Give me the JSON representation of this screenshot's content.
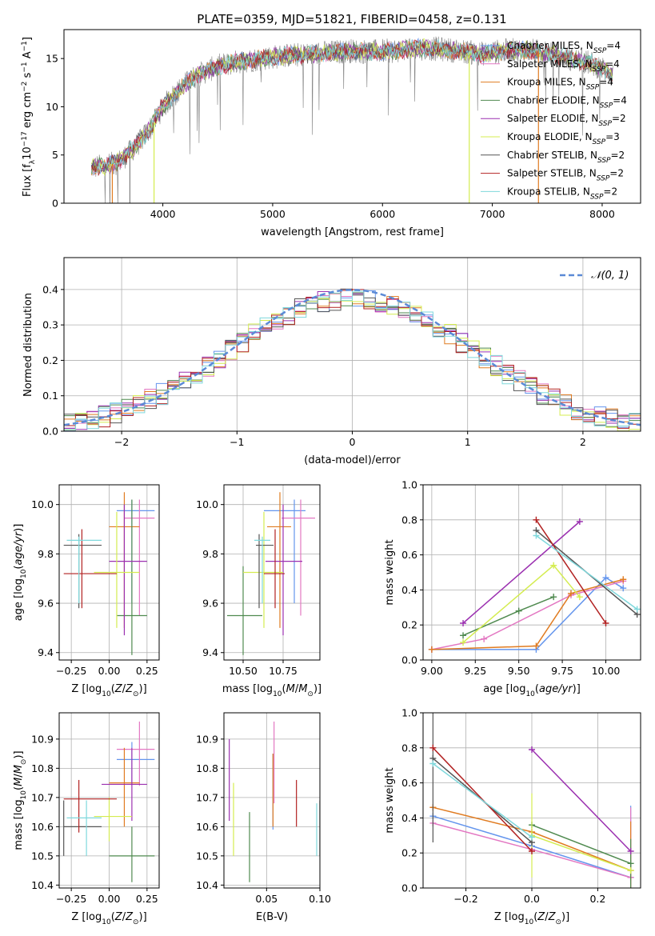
{
  "title": "PLATE=0359, MJD=51821, FIBERID=0458, z=0.131",
  "legend_colors": {
    "Chabrier MILES": "#6495ed",
    "Salpeter MILES": "#e377c2",
    "Kroupa MILES": "#e07b20",
    "Chabrier ELODIE": "#4f8a4f",
    "Salpeter ELODIE": "#9b30b0",
    "Kroupa ELODIE": "#d4ec50",
    "Chabrier STELIB": "#555555",
    "Salpeter STELIB": "#b22222",
    "Kroupa STELIB": "#7fd8dc"
  },
  "chart_data": [
    {
      "id": "spectrum",
      "type": "line",
      "xlabel": "wavelength [Angstrom, rest frame]",
      "ylabel": "Flux [f_λ10^-17 erg cm^-2 s^-1 A^-1]",
      "xlim": [
        3100,
        8350
      ],
      "ylim": [
        0,
        18
      ],
      "xticks": [
        4000,
        5000,
        6000,
        7000,
        8000
      ],
      "yticks": [
        0,
        5,
        10,
        15
      ],
      "grid": false,
      "legend_position": "top-right",
      "series": [
        {
          "name": "Chabrier MILES, N_SSP=4"
        },
        {
          "name": "Salpeter MILES, N_SSP=4"
        },
        {
          "name": "Kroupa MILES, N_SSP=4"
        },
        {
          "name": "Chabrier ELODIE, N_SSP=4"
        },
        {
          "name": "Salpeter ELODIE, N_SSP=2"
        },
        {
          "name": "Kroupa ELODIE, N_SSP=3"
        },
        {
          "name": "Chabrier STELIB, N_SSP=2"
        },
        {
          "name": "Salpeter STELIB, N_SSP=2"
        },
        {
          "name": "Kroupa STELIB, N_SSP=2"
        }
      ],
      "continuum": {
        "x": [
          3350,
          3500,
          3600,
          3700,
          3800,
          3900,
          4000,
          4100,
          4200,
          4300,
          4500,
          4700,
          4900,
          5100,
          5300,
          5500,
          5700,
          5900,
          6100,
          6300,
          6500,
          6700,
          6900,
          7100,
          7300,
          7500,
          7700,
          7900,
          8100
        ],
        "y": [
          3.7,
          3.9,
          4.3,
          5.3,
          6.5,
          8.0,
          10.0,
          11.2,
          12.3,
          13.2,
          14.2,
          14.7,
          15.0,
          15.3,
          15.4,
          15.6,
          15.8,
          15.7,
          15.8,
          16.1,
          16.0,
          15.8,
          15.5,
          15.8,
          15.9,
          15.6,
          15.0,
          14.5,
          13.4
        ]
      }
    },
    {
      "id": "residuals",
      "type": "histogram",
      "xlabel": "(data-model)/error",
      "ylabel": "Normed distribution",
      "xlim": [
        -2.5,
        2.5
      ],
      "ylim": [
        0,
        0.49
      ],
      "xticks": [
        -2,
        -1,
        0,
        1,
        2
      ],
      "yticks": [
        0.0,
        0.1,
        0.2,
        0.3,
        0.4
      ],
      "grid": true,
      "legend_position": "top-right",
      "reference": {
        "name": "N(0,1)",
        "mean": 0,
        "sigma": 1,
        "color": "#5b8ad6"
      },
      "bin_width": 0.1,
      "reference_value_sample": [
        0.0175,
        0.054,
        0.13,
        0.242,
        0.352,
        0.399,
        0.352,
        0.242,
        0.13,
        0.054,
        0.0175
      ]
    },
    {
      "id": "age-vs-Z",
      "type": "errorbar",
      "xlabel": "Z [log10(Z/Z⊙)]",
      "ylabel": "age [log10(age/yr)]",
      "xlim": [
        -0.33,
        0.33
      ],
      "ylim": [
        9.37,
        10.08
      ],
      "xticks": [
        -0.25,
        0,
        0.25
      ],
      "yticks": [
        9.4,
        9.6,
        9.8,
        10.0
      ],
      "points": [
        {
          "model": "Chabrier MILES",
          "x": 0.15,
          "y": 9.975,
          "xlo": 0.05,
          "xhi": 0.3,
          "ylo": 9.6,
          "yhi": 10.02
        },
        {
          "model": "Salpeter MILES",
          "x": 0.2,
          "y": 9.945,
          "xlo": 0.1,
          "xhi": 0.3,
          "ylo": 9.55,
          "yhi": 10.02
        },
        {
          "model": "Kroupa MILES",
          "x": 0.1,
          "y": 9.91,
          "xlo": 0.0,
          "xhi": 0.2,
          "ylo": 9.5,
          "yhi": 10.05
        },
        {
          "model": "Chabrier ELODIE",
          "x": 0.15,
          "y": 9.55,
          "xlo": 0.05,
          "xhi": 0.25,
          "ylo": 9.39,
          "yhi": 10.02
        },
        {
          "model": "Salpeter ELODIE",
          "x": 0.1,
          "y": 9.77,
          "xlo": 0.0,
          "xhi": 0.25,
          "ylo": 9.47,
          "yhi": 10.0
        },
        {
          "model": "Kroupa ELODIE",
          "x": 0.05,
          "y": 9.725,
          "xlo": -0.1,
          "xhi": 0.2,
          "ylo": 9.5,
          "yhi": 9.97
        },
        {
          "model": "Chabrier STELIB",
          "x": -0.2,
          "y": 9.835,
          "xlo": -0.3,
          "xhi": -0.05,
          "ylo": 9.58,
          "yhi": 9.88
        },
        {
          "model": "Salpeter STELIB",
          "x": -0.18,
          "y": 9.72,
          "xlo": -0.3,
          "xhi": 0.05,
          "ylo": 9.58,
          "yhi": 9.9
        },
        {
          "model": "Kroupa STELIB",
          "x": -0.2,
          "y": 9.855,
          "xlo": -0.28,
          "xhi": -0.05,
          "ylo": 9.6,
          "yhi": 9.87
        }
      ]
    },
    {
      "id": "age-vs-mass",
      "type": "errorbar",
      "xlabel": "mass [log10(M/M⊙)]",
      "ylabel": "",
      "xlim": [
        10.38,
        10.98
      ],
      "ylim": [
        9.37,
        10.08
      ],
      "xticks": [
        10.5,
        10.75
      ],
      "yticks": [
        9.4,
        9.6,
        9.8,
        10.0
      ],
      "points": [
        {
          "model": "Chabrier MILES",
          "x": 10.82,
          "y": 9.975,
          "xlo": 10.63,
          "xhi": 10.89,
          "ylo": 9.6,
          "yhi": 10.02
        },
        {
          "model": "Salpeter MILES",
          "x": 10.86,
          "y": 9.945,
          "xlo": 10.74,
          "xhi": 10.95,
          "ylo": 9.55,
          "yhi": 10.02
        },
        {
          "model": "Kroupa MILES",
          "x": 10.73,
          "y": 9.91,
          "xlo": 10.65,
          "xhi": 10.8,
          "ylo": 9.5,
          "yhi": 10.05
        },
        {
          "model": "Chabrier ELODIE",
          "x": 10.5,
          "y": 9.55,
          "xlo": 10.4,
          "xhi": 10.62,
          "ylo": 9.39,
          "yhi": 9.75
        },
        {
          "model": "Salpeter ELODIE",
          "x": 10.75,
          "y": 9.77,
          "xlo": 10.64,
          "xhi": 10.87,
          "ylo": 9.47,
          "yhi": 10.0
        },
        {
          "model": "Kroupa ELODIE",
          "x": 10.63,
          "y": 9.725,
          "xlo": 10.5,
          "xhi": 10.75,
          "ylo": 9.5,
          "yhi": 9.97
        },
        {
          "model": "Chabrier STELIB",
          "x": 10.6,
          "y": 9.835,
          "xlo": 10.58,
          "xhi": 10.69,
          "ylo": 9.58,
          "yhi": 9.88
        },
        {
          "model": "Salpeter STELIB",
          "x": 10.7,
          "y": 9.72,
          "xlo": 10.63,
          "xhi": 10.76,
          "ylo": 9.58,
          "yhi": 9.9
        },
        {
          "model": "Kroupa STELIB",
          "x": 10.62,
          "y": 9.855,
          "xlo": 10.57,
          "xhi": 10.67,
          "ylo": 9.6,
          "yhi": 9.87
        }
      ]
    },
    {
      "id": "mass-weight-vs-age",
      "type": "line",
      "xlabel": "age [log10(age/yr)]",
      "ylabel": "mass weight",
      "xlim": [
        8.95,
        10.2
      ],
      "ylim": [
        0,
        1
      ],
      "xticks": [
        9.0,
        9.25,
        9.5,
        9.75,
        10.0
      ],
      "yticks": [
        0.0,
        0.2,
        0.4,
        0.6,
        0.8,
        1.0
      ],
      "grid": true,
      "series": [
        {
          "model": "Chabrier MILES",
          "x": [
            9.0,
            9.6,
            10.0,
            10.1
          ],
          "y": [
            0.06,
            0.06,
            0.47,
            0.41
          ]
        },
        {
          "model": "Salpeter MILES",
          "x": [
            9.0,
            9.3,
            9.8,
            10.1
          ],
          "y": [
            0.06,
            0.12,
            0.37,
            0.45
          ]
        },
        {
          "model": "Kroupa MILES",
          "x": [
            9.0,
            9.6,
            9.8,
            10.1
          ],
          "y": [
            0.06,
            0.08,
            0.38,
            0.46
          ]
        },
        {
          "model": "Chabrier ELODIE",
          "x": [
            9.18,
            9.5,
            9.7
          ],
          "y": [
            0.14,
            0.28,
            0.36
          ]
        },
        {
          "model": "Salpeter ELODIE",
          "x": [
            9.18,
            9.85
          ],
          "y": [
            0.21,
            0.79
          ]
        },
        {
          "model": "Kroupa ELODIE",
          "x": [
            9.18,
            9.7,
            9.85
          ],
          "y": [
            0.1,
            0.54,
            0.36
          ]
        },
        {
          "model": "Chabrier STELIB",
          "x": [
            9.6,
            10.18
          ],
          "y": [
            0.74,
            0.26
          ]
        },
        {
          "model": "Salpeter STELIB",
          "x": [
            9.6,
            10.0
          ],
          "y": [
            0.8,
            0.21
          ]
        },
        {
          "model": "Kroupa STELIB",
          "x": [
            9.6,
            10.18
          ],
          "y": [
            0.71,
            0.29
          ]
        }
      ]
    },
    {
      "id": "mass-vs-Z",
      "type": "errorbar",
      "xlabel": "Z [log10(Z/Z⊙)]",
      "ylabel": "mass [log10(M/M⊙)]",
      "xlim": [
        -0.33,
        0.33
      ],
      "ylim": [
        10.39,
        10.99
      ],
      "xticks": [
        -0.25,
        0,
        0.25
      ],
      "yticks": [
        10.4,
        10.5,
        10.6,
        10.7,
        10.8,
        10.9
      ],
      "points": [
        {
          "model": "Chabrier MILES",
          "x": 0.15,
          "y": 10.83,
          "xlo": 0.05,
          "xhi": 0.3,
          "ylo": 10.74,
          "yhi": 10.89
        },
        {
          "model": "Salpeter MILES",
          "x": 0.2,
          "y": 10.865,
          "xlo": 0.05,
          "xhi": 0.3,
          "ylo": 10.74,
          "yhi": 10.96
        },
        {
          "model": "Kroupa MILES",
          "x": 0.1,
          "y": 10.75,
          "xlo": 0.0,
          "xhi": 0.2,
          "ylo": 10.6,
          "yhi": 10.87
        },
        {
          "model": "Chabrier ELODIE",
          "x": 0.15,
          "y": 10.5,
          "xlo": 0.0,
          "xhi": 0.3,
          "ylo": 10.41,
          "yhi": 10.6
        },
        {
          "model": "Salpeter ELODIE",
          "x": 0.15,
          "y": 10.745,
          "xlo": -0.05,
          "xhi": 0.25,
          "ylo": 10.62,
          "yhi": 10.87
        },
        {
          "model": "Kroupa ELODIE",
          "x": 0.0,
          "y": 10.635,
          "xlo": -0.1,
          "xhi": 0.15,
          "ylo": 10.55,
          "yhi": 10.7
        },
        {
          "model": "Chabrier STELIB",
          "x": -0.3,
          "y": 10.6,
          "xlo": -0.3,
          "xhi": -0.05,
          "ylo": 10.5,
          "yhi": 10.69
        },
        {
          "model": "Salpeter STELIB",
          "x": -0.2,
          "y": 10.695,
          "xlo": -0.3,
          "xhi": 0.05,
          "ylo": 10.58,
          "yhi": 10.76
        },
        {
          "model": "Kroupa STELIB",
          "x": -0.15,
          "y": 10.63,
          "xlo": -0.28,
          "xhi": -0.05,
          "ylo": 10.5,
          "yhi": 10.69
        }
      ]
    },
    {
      "id": "mass-vs-EBV",
      "type": "errorbar",
      "xlabel": "E(B-V)",
      "ylabel": "",
      "xlim": [
        0.01,
        0.1
      ],
      "ylim": [
        10.39,
        10.99
      ],
      "xticks": [
        0.05,
        0.1
      ],
      "yticks": [
        10.4,
        10.5,
        10.6,
        10.7,
        10.8,
        10.9
      ],
      "points": [
        {
          "model": "Chabrier MILES",
          "x": 0.056,
          "ylo": 10.59,
          "yhi": 10.85
        },
        {
          "model": "Salpeter MILES",
          "x": 0.057,
          "ylo": 10.68,
          "yhi": 10.96
        },
        {
          "model": "Kroupa MILES",
          "x": 0.056,
          "ylo": 10.6,
          "yhi": 10.85
        },
        {
          "model": "Chabrier ELODIE",
          "x": 0.034,
          "ylo": 10.41,
          "yhi": 10.65
        },
        {
          "model": "Salpeter ELODIE",
          "x": 0.015,
          "ylo": 10.62,
          "yhi": 10.9
        },
        {
          "model": "Kroupa ELODIE",
          "x": 0.019,
          "ylo": 10.5,
          "yhi": 10.75
        },
        {
          "model": "Chabrier STELIB",
          "x": 0.1,
          "ylo": 10.5,
          "yhi": 10.69
        },
        {
          "model": "Salpeter STELIB",
          "x": 0.078,
          "ylo": 10.6,
          "yhi": 10.76
        },
        {
          "model": "Kroupa STELIB",
          "x": 0.097,
          "ylo": 10.5,
          "yhi": 10.68
        }
      ]
    },
    {
      "id": "mass-weight-vs-Z",
      "type": "line",
      "xlabel": "Z [log10(Z/Z⊙)]",
      "ylabel": "mass weight",
      "xlim": [
        -0.33,
        0.33
      ],
      "ylim": [
        0,
        1
      ],
      "xticks": [
        -0.2,
        0.0,
        0.2
      ],
      "yticks": [
        0.0,
        0.2,
        0.4,
        0.6,
        0.8,
        1.0
      ],
      "grid": true,
      "series": [
        {
          "model": "Chabrier MILES",
          "x": [
            -0.3,
            0.0,
            0.3
          ],
          "y": [
            0.41,
            0.24,
            0.06
          ],
          "err": [
            0.0,
            0.0,
            0.41
          ]
        },
        {
          "model": "Salpeter MILES",
          "x": [
            -0.3,
            0.0,
            0.3
          ],
          "y": [
            0.37,
            0.22,
            0.06
          ],
          "err": [
            0.0,
            0.0,
            0.4
          ]
        },
        {
          "model": "Kroupa MILES",
          "x": [
            -0.3,
            0.0,
            0.3
          ],
          "y": [
            0.46,
            0.32,
            0.1
          ],
          "err": [
            0.0,
            0.0,
            0.28
          ]
        },
        {
          "model": "Chabrier ELODIE",
          "x": [
            0.0,
            0.3
          ],
          "y": [
            0.36,
            0.14
          ],
          "err": [
            0.0,
            0.14
          ]
        },
        {
          "model": "Salpeter ELODIE",
          "x": [
            0.0,
            0.3
          ],
          "y": [
            0.79,
            0.21
          ],
          "err": [
            0.0,
            0.0
          ]
        },
        {
          "model": "Kroupa ELODIE",
          "x": [
            0.0,
            0.3
          ],
          "y": [
            0.3,
            0.1
          ],
          "err": [
            0.24,
            0.0
          ]
        },
        {
          "model": "Chabrier STELIB",
          "x": [
            -0.3,
            0.0
          ],
          "y": [
            0.74,
            0.26
          ],
          "err": [
            0.48,
            0.0
          ]
        },
        {
          "model": "Salpeter STELIB",
          "x": [
            -0.3,
            0.0
          ],
          "y": [
            0.8,
            0.21
          ],
          "err": [
            0.0,
            0.0
          ]
        },
        {
          "model": "Kroupa STELIB",
          "x": [
            -0.3,
            0.0
          ],
          "y": [
            0.71,
            0.29
          ],
          "err": [
            0.0,
            0.0
          ]
        }
      ]
    }
  ]
}
